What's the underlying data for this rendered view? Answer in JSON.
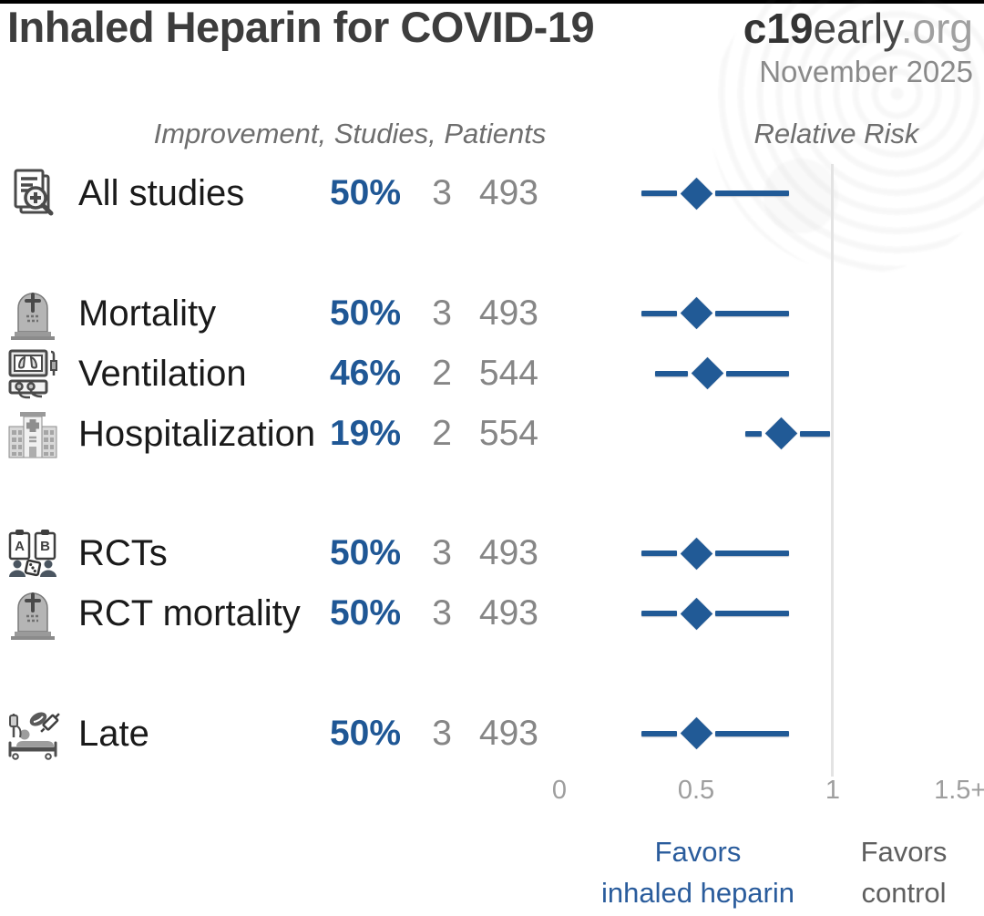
{
  "header": {
    "title": "Inhaled Heparin for COVID-19",
    "brand_bold": "c19",
    "brand_regular": "early",
    "brand_suffix": ".org",
    "date": "November 2025"
  },
  "table": {
    "columns_header": "Improvement, Studies, Patients",
    "plot_header": "Relative Risk"
  },
  "footer": {
    "favors_treatment_line1": "Favors",
    "favors_treatment_line2": "inhaled heparin",
    "favors_control_line1": "Favors",
    "favors_control_line2": "control"
  },
  "colors": {
    "accent_blue": "#215a96",
    "improvement_text_blue": "#1f5795",
    "favors_blue": "#2a5c9c",
    "title_gray": "#3d3d3d",
    "number_gray": "#868686",
    "axis_gray": "#9e9e9e",
    "reference_line_gray": "#e3e3e3"
  },
  "chart_data": {
    "type": "forest",
    "title": "Inhaled Heparin for COVID-19",
    "xlabel": "Relative Risk",
    "x_axis": {
      "range": [
        0,
        1.55
      ],
      "reference_value": 1,
      "ticks": [
        {
          "label": "0",
          "value": 0
        },
        {
          "label": "0.5",
          "value": 0.5
        },
        {
          "label": "1",
          "value": 1
        },
        {
          "label": "1.5+",
          "value": 1.5
        }
      ]
    },
    "rows": [
      {
        "label": "All studies",
        "improvement": "50%",
        "studies": "3",
        "patients": "493",
        "rr": 0.5,
        "ci_low": 0.3,
        "ci_high": 0.84,
        "group": 0,
        "icon": "documents-magnifier-icon"
      },
      {
        "label": "Mortality",
        "improvement": "50%",
        "studies": "3",
        "patients": "493",
        "rr": 0.5,
        "ci_low": 0.3,
        "ci_high": 0.84,
        "group": 1,
        "icon": "tombstone-icon"
      },
      {
        "label": "Ventilation",
        "improvement": "46%",
        "studies": "2",
        "patients": "544",
        "rr": 0.54,
        "ci_low": 0.35,
        "ci_high": 0.84,
        "group": 1,
        "icon": "ventilator-icon"
      },
      {
        "label": "Hospitalization",
        "improvement": "19%",
        "studies": "2",
        "patients": "554",
        "rr": 0.81,
        "ci_low": 0.68,
        "ci_high": 0.99,
        "group": 1,
        "icon": "hospital-icon"
      },
      {
        "label": "RCTs",
        "improvement": "50%",
        "studies": "3",
        "patients": "493",
        "rr": 0.5,
        "ci_low": 0.3,
        "ci_high": 0.84,
        "group": 2,
        "icon": "clipboards-randomization-icon"
      },
      {
        "label": "RCT mortality",
        "improvement": "50%",
        "studies": "3",
        "patients": "493",
        "rr": 0.5,
        "ci_low": 0.3,
        "ci_high": 0.84,
        "group": 2,
        "icon": "tombstone-icon"
      },
      {
        "label": "Late",
        "improvement": "50%",
        "studies": "3",
        "patients": "493",
        "rr": 0.5,
        "ci_low": 0.3,
        "ci_high": 0.84,
        "group": 3,
        "icon": "patient-bed-icon"
      }
    ],
    "legend": {
      "favors_left": "Favors inhaled heparin",
      "favors_right": "Favors control",
      "legend_position": "bottom"
    }
  }
}
